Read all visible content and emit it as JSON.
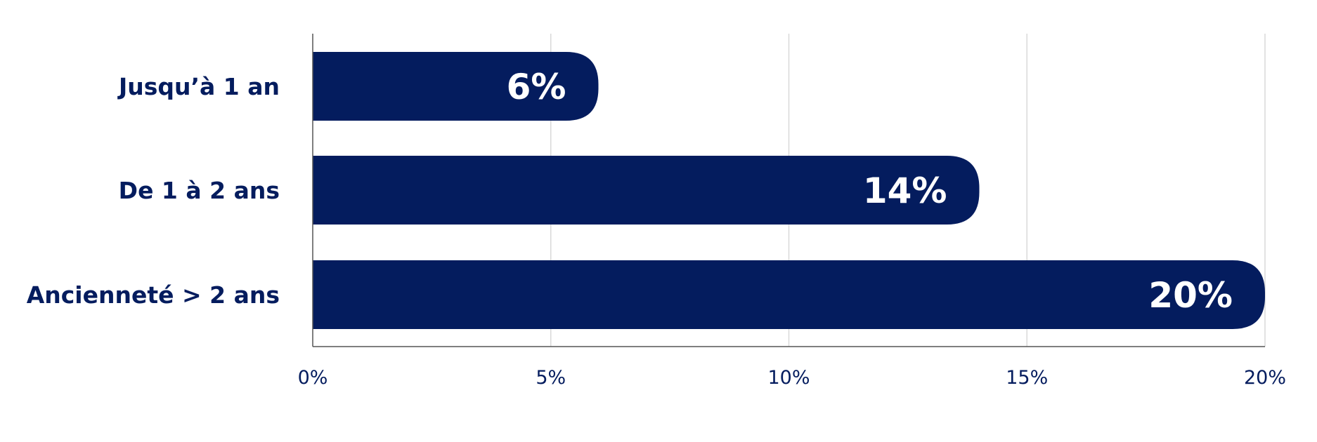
{
  "chart_data": {
    "type": "bar",
    "orientation": "horizontal",
    "title": "",
    "xlabel": "",
    "ylabel": "",
    "categories": [
      "Jusqu’à 1 an",
      "De 1 à 2 ans",
      "Ancienneté > 2 ans"
    ],
    "values": [
      6,
      14,
      20
    ],
    "data_labels": [
      "6%",
      "14%",
      "20%"
    ],
    "xlim": [
      0,
      20
    ],
    "x_ticks": [
      0,
      5,
      10,
      15,
      20
    ],
    "x_tick_labels": [
      "0%",
      "5%",
      "10%",
      "15%",
      "20%"
    ],
    "grid": true,
    "legend": "none"
  },
  "colors": {
    "bar": "#041c5e",
    "label_text": "#041c5e",
    "tick_text": "#041c5e",
    "grid": "#d9d9d9",
    "axis": "#555555",
    "data_label_text": "#ffffff"
  }
}
